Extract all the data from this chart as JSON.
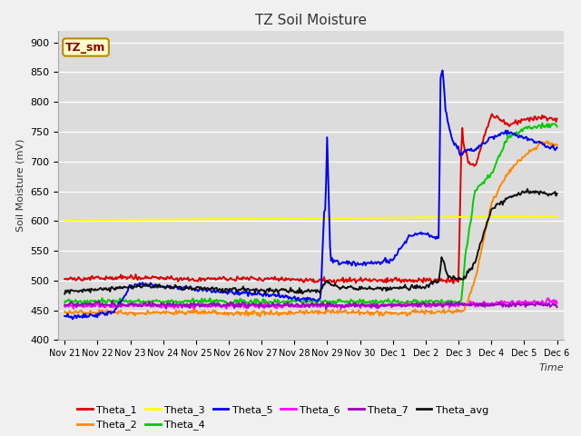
{
  "title": "TZ Soil Moisture",
  "xlabel": "Time",
  "ylabel": "Soil Moisture (mV)",
  "ylim": [
    400,
    920
  ],
  "yticks": [
    400,
    450,
    500,
    550,
    600,
    650,
    700,
    750,
    800,
    850,
    900
  ],
  "bg_color": "#dcdcdc",
  "fig_color": "#f0f0f0",
  "label_box": "TZ_sm",
  "series_colors": {
    "Theta_1": "#dd0000",
    "Theta_2": "#ff8800",
    "Theta_3": "#ffff00",
    "Theta_4": "#00cc00",
    "Theta_5": "#0000ee",
    "Theta_6": "#ff00ff",
    "Theta_7": "#9900bb",
    "Theta_avg": "#111111"
  },
  "x_tick_labels": [
    "Nov 21",
    "Nov 22",
    "Nov 23",
    "Nov 24",
    "Nov 25",
    "Nov 26",
    "Nov 27",
    "Nov 28",
    "Nov 29",
    "Nov 30",
    "Dec 1",
    "Dec 2",
    "Dec 3",
    "Dec 4",
    "Dec 5",
    "Dec 6"
  ]
}
